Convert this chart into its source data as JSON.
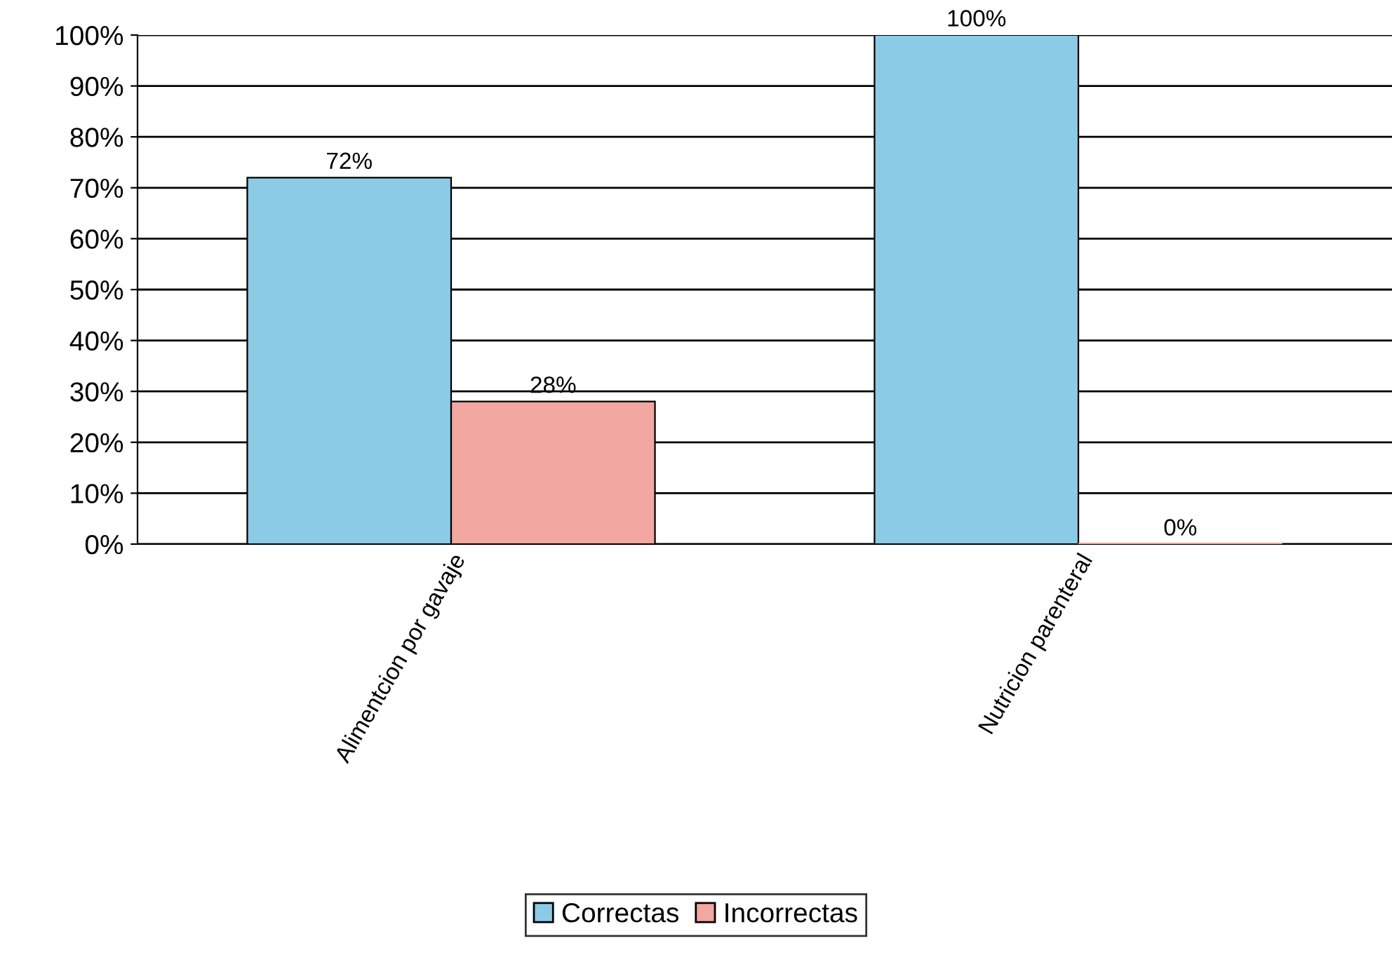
{
  "chart_data": {
    "type": "bar",
    "categories": [
      "Alimentcion por gavaje",
      "Nutricion parenteral"
    ],
    "series": [
      {
        "name": "Correctas",
        "color": "#8ccbe6",
        "values": [
          72,
          100
        ],
        "value_labels": [
          "72%",
          "100%"
        ]
      },
      {
        "name": "Incorrectas",
        "color": "#f2a7a0",
        "values": [
          28,
          0
        ],
        "value_labels": [
          "28%",
          "0%"
        ]
      }
    ],
    "ylim": [
      0,
      100
    ],
    "yticks": [
      {
        "value": 0,
        "label": "0%"
      },
      {
        "value": 10,
        "label": "10%"
      },
      {
        "value": 20,
        "label": "20%"
      },
      {
        "value": 30,
        "label": "30%"
      },
      {
        "value": 40,
        "label": "40%"
      },
      {
        "value": 50,
        "label": "50%"
      },
      {
        "value": 60,
        "label": "60%"
      },
      {
        "value": 70,
        "label": "70%"
      },
      {
        "value": 80,
        "label": "80%"
      },
      {
        "value": 90,
        "label": "90%"
      },
      {
        "value": 100,
        "label": "100%"
      }
    ],
    "grid": "y",
    "legend": "bottom"
  }
}
